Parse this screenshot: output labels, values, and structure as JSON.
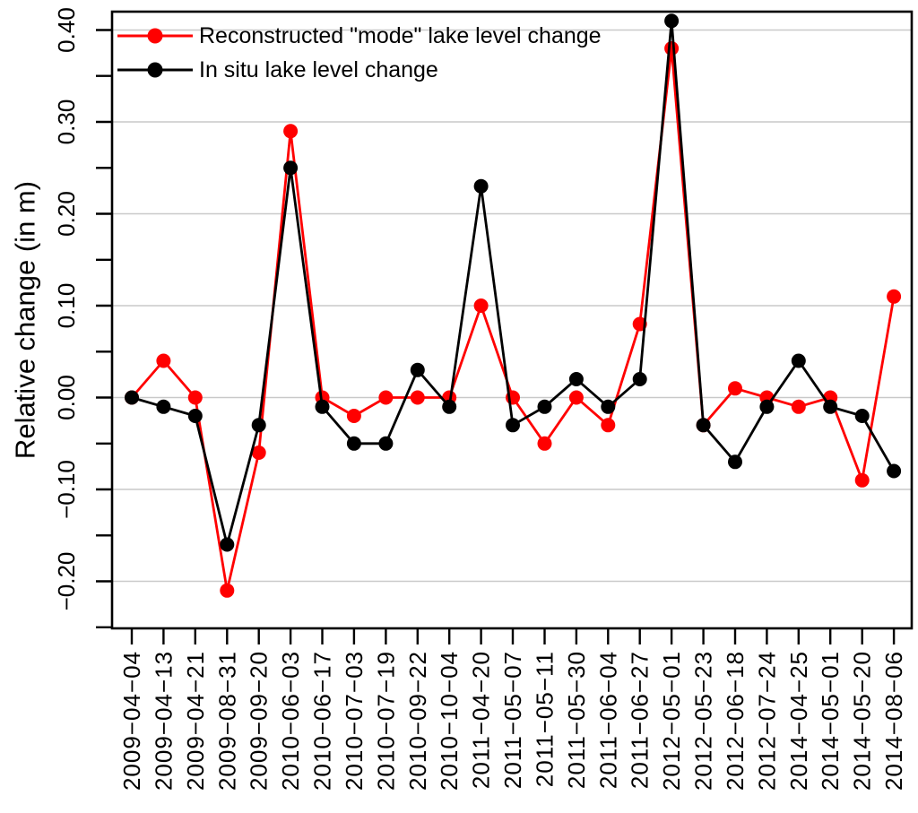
{
  "figure": {
    "background": "#ffffff"
  },
  "chart_data": {
    "type": "line",
    "title": "",
    "xlabel": "",
    "ylabel": "Relative change (in m)",
    "grid": "horizontal-major-only",
    "legend_position": "top-left-inside",
    "marker": "circle",
    "colors": {
      "gridline": "#c9c9c9",
      "axis": "#000000",
      "text": "#000000"
    },
    "ylim": [
      -0.25,
      0.42
    ],
    "yticks_major": [
      -0.2,
      -0.1,
      0.0,
      0.1,
      0.2,
      0.3,
      0.4
    ],
    "ytick_labels": [
      "−0.20",
      "−0.10",
      "0.00",
      "0.10",
      "0.20",
      "0.30",
      "0.40"
    ],
    "minor_tick_step": 0.05,
    "categories": [
      "2009−04−04",
      "2009−04−13",
      "2009−04−21",
      "2009−08−31",
      "2009−09−20",
      "2010−06−03",
      "2010−06−17",
      "2010−07−03",
      "2010−07−19",
      "2010−09−22",
      "2010−10−04",
      "2011−04−20",
      "2011−05−07",
      "2011−05−11",
      "2011−05−30",
      "2011−06−04",
      "2011−06−27",
      "2012−05−01",
      "2012−05−23",
      "2012−06−18",
      "2012−07−24",
      "2014−04−25",
      "2014−05−01",
      "2014−05−20",
      "2014−08−06"
    ],
    "series": [
      {
        "name": "Reconstructed \"mode\" lake level change",
        "color": "#ff0000",
        "values": [
          0.0,
          0.04,
          0.0,
          -0.21,
          -0.06,
          0.29,
          0.0,
          -0.02,
          0.0,
          0.0,
          0.0,
          0.1,
          0.0,
          -0.05,
          0.0,
          -0.03,
          0.08,
          0.38,
          -0.03,
          0.01,
          0.0,
          -0.01,
          0.0,
          -0.09,
          0.11
        ]
      },
      {
        "name": "In situ lake level change",
        "color": "#000000",
        "values": [
          0.0,
          -0.01,
          -0.02,
          -0.16,
          -0.03,
          0.25,
          -0.01,
          -0.05,
          -0.05,
          0.03,
          -0.01,
          0.23,
          -0.03,
          -0.01,
          0.02,
          -0.01,
          0.02,
          0.41,
          -0.03,
          -0.07,
          -0.01,
          0.04,
          -0.01,
          -0.02,
          -0.08
        ]
      }
    ]
  }
}
